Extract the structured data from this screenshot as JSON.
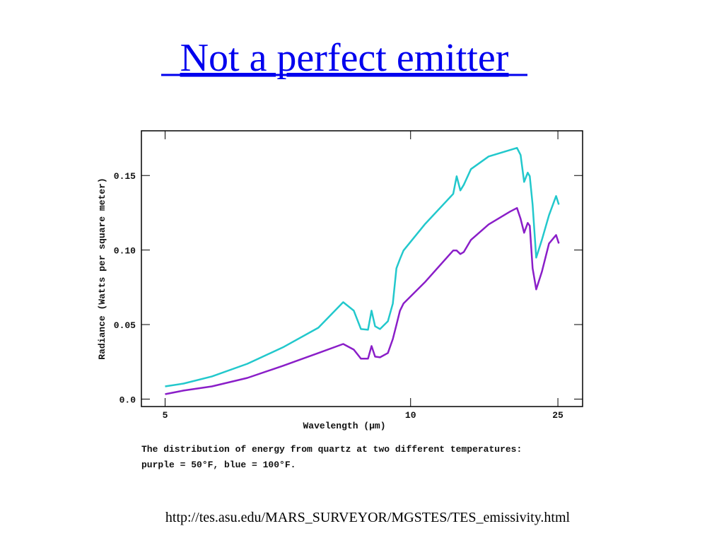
{
  "slide": {
    "title": "Not a perfect emitter",
    "source": "http://tes.asu.edu/MARS_SURVEYOR/MGSTES/TES_emissivity.html"
  },
  "chart_data": {
    "type": "line",
    "x_label": "Wavelength (μm)",
    "y_label": "Radiance (Watts per square meter)",
    "caption": [
      "The distribution of energy from quartz at two different temperatures:",
      "purple = 50°F, blue = 100°F."
    ],
    "x_scale": "reciprocal",
    "x": [
      5,
      5.195,
      5.527,
      6.007,
      6.578,
      7.269,
      7.846,
      8.122,
      8.317,
      8.522,
      8.628,
      8.737,
      8.894,
      9.153,
      9.326,
      9.454,
      9.584,
      9.719,
      10.61,
      12.1,
      12.31,
      12.54,
      12.77,
      13.26,
      14.66,
      16.8,
      17.65,
      18.12,
      18.6,
      19.12,
      19.44,
      19.88,
      20.48,
      21.49,
      22.92,
      24.54,
      25.25
    ],
    "series": [
      {
        "color": "#22c8cc",
        "values": [
          0.0085,
          0.0104,
          0.0152,
          0.0237,
          0.0347,
          0.0479,
          0.065,
          0.0593,
          0.047,
          0.0465,
          0.0593,
          0.0489,
          0.047,
          0.0522,
          0.0641,
          0.0878,
          0.094,
          0.0997,
          0.1172,
          0.1377,
          0.1495,
          0.14,
          0.1438,
          0.1543,
          0.1628,
          0.1671,
          0.1685,
          0.1638,
          0.1457,
          0.1519,
          0.1495,
          0.1305,
          0.0949,
          0.1068,
          0.1234,
          0.1362,
          0.1305
        ]
      },
      {
        "color": "#8a1ec8",
        "values": [
          0.0033,
          0.0057,
          0.0085,
          0.0142,
          0.0223,
          0.0309,
          0.037,
          0.0332,
          0.0271,
          0.0271,
          0.0356,
          0.0285,
          0.028,
          0.0309,
          0.0403,
          0.0498,
          0.0593,
          0.0641,
          0.0783,
          0.0997,
          0.0997,
          0.0973,
          0.0987,
          0.1068,
          0.1172,
          0.1258,
          0.1282,
          0.121,
          0.1116,
          0.1182,
          0.1163,
          0.0878,
          0.0736,
          0.0854,
          0.1044,
          0.1101,
          0.1044
        ]
      }
    ],
    "xlim": [
      4.77,
      33.4
    ],
    "xticks": [
      5,
      10,
      25
    ],
    "ylim": [
      -0.005,
      0.18
    ],
    "yticks": [
      {
        "value": 0,
        "label": "0.0"
      },
      0.05,
      {
        "value": 0.1,
        "label": "0.10"
      },
      0.15
    ]
  }
}
